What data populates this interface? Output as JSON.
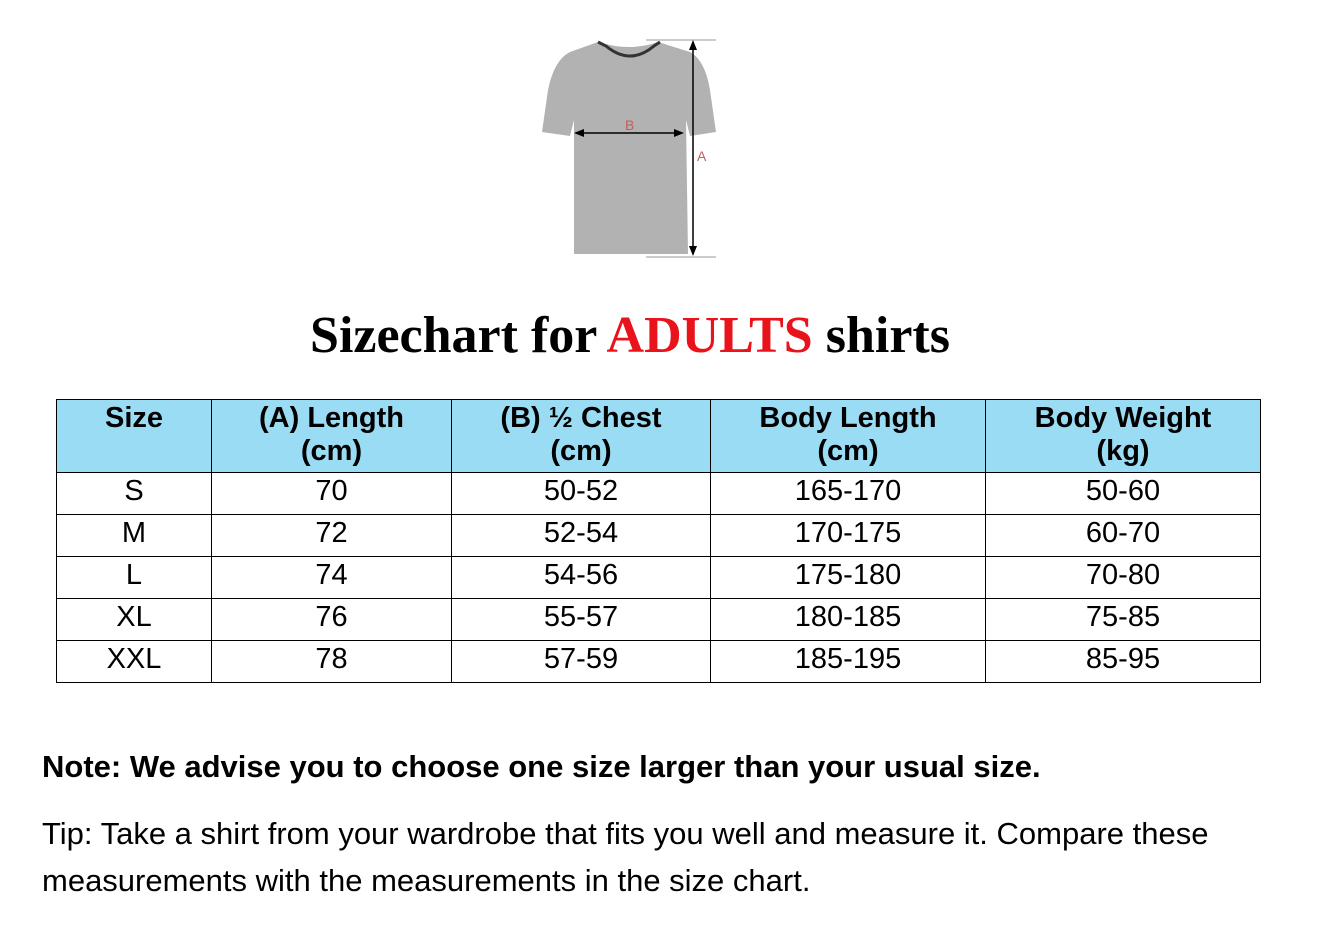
{
  "diagram": {
    "label_a": "A",
    "label_b": "B"
  },
  "title": {
    "prefix": "Sizechart for ",
    "highlight": "ADULTS",
    "suffix": " shirts",
    "highlight_color": "#e8131b"
  },
  "table": {
    "header_color": "#9adcf4",
    "headers": [
      {
        "line1": "Size",
        "line2": ""
      },
      {
        "line1": "(A) Length",
        "line2": "(cm)"
      },
      {
        "line1": "(B) ½ Chest",
        "line2": "(cm)"
      },
      {
        "line1": "Body Length",
        "line2": "(cm)"
      },
      {
        "line1": "Body Weight",
        "line2": "(kg)"
      }
    ],
    "rows": [
      [
        "S",
        "70",
        "50-52",
        "165-170",
        "50-60"
      ],
      [
        "M",
        "72",
        "52-54",
        "170-175",
        "60-70"
      ],
      [
        "L",
        "74",
        "54-56",
        "175-180",
        "70-80"
      ],
      [
        "XL",
        "76",
        "55-57",
        "180-185",
        "75-85"
      ],
      [
        "XXL",
        "78",
        "57-59",
        "185-195",
        "85-95"
      ]
    ]
  },
  "note": "Note: We advise you to choose one size larger than your usual size.",
  "tip": "Tip: Take a shirt from your wardrobe that fits you well and measure it. Compare these measurements with the measurements in the size chart."
}
